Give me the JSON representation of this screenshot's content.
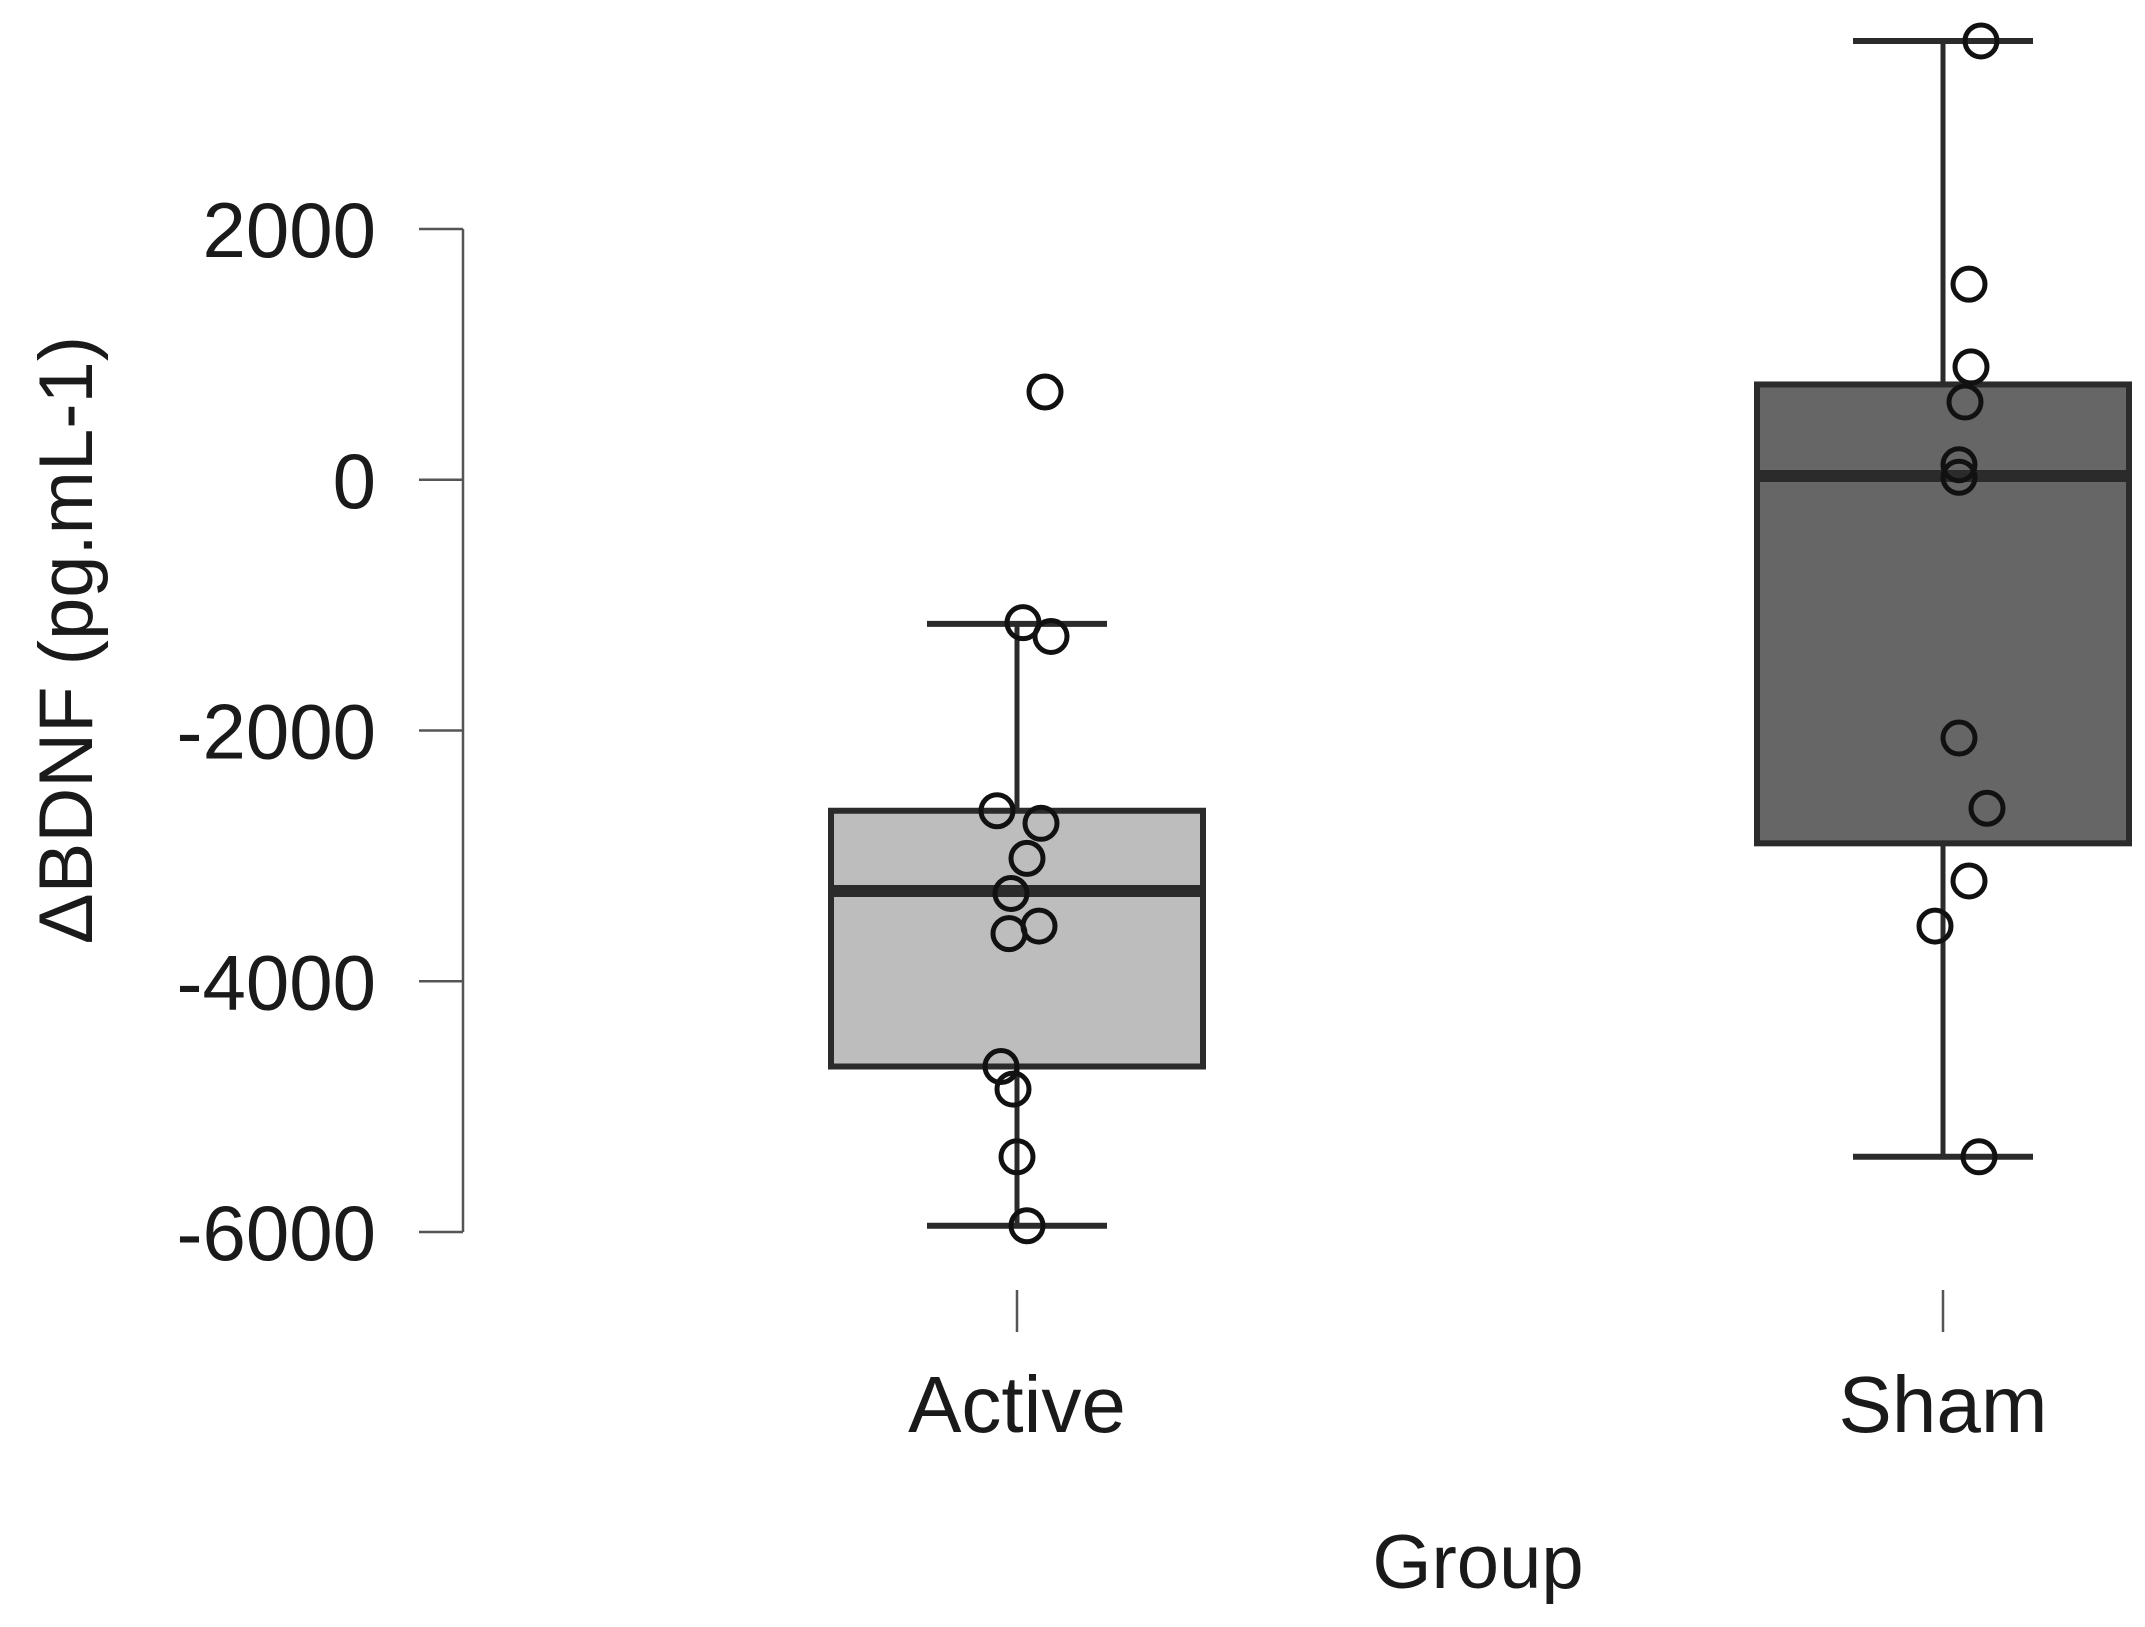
{
  "chart_data": {
    "type": "boxplot",
    "title": "",
    "xlabel": "Group",
    "ylabel": "ΔBDNF (pg.mL-1)",
    "ylim": [
      -6000,
      2000
    ],
    "yticks": [
      2000,
      0,
      -2000,
      -4000,
      -6000
    ],
    "ytick_labels": [
      "2000",
      "0",
      "-2000",
      "-4000",
      "-6000"
    ],
    "categories": [
      "Active",
      "Sham"
    ],
    "groups": [
      {
        "name": "Active",
        "fill": "#bdbdbd",
        "whisker_low": -5950,
        "q1": -4680,
        "median": -3280,
        "q3": -2640,
        "whisker_high": -1150,
        "points": [
          700,
          -1140,
          -1250,
          -2640,
          -2740,
          -3020,
          -3300,
          -3560,
          -3620,
          -4680,
          -4860,
          -5400,
          -5950
        ]
      },
      {
        "name": "Sham",
        "fill": "#666666",
        "whisker_low": -5400,
        "q1": -2900,
        "median": 30,
        "q3": 760,
        "whisker_high": 3500,
        "points": [
          3500,
          1560,
          900,
          620,
          120,
          20,
          -2060,
          -2620,
          -3200,
          -3560,
          -5400
        ]
      }
    ],
    "grid": false,
    "legend": "none"
  }
}
